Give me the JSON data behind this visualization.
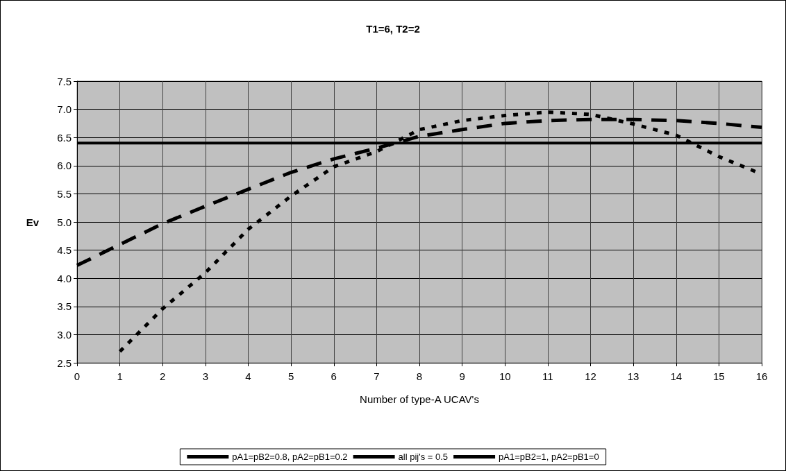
{
  "chart_data": {
    "type": "line",
    "title": "T1=6, T2=2",
    "xlabel": "Number of type-A UCAV's",
    "ylabel": "Ev",
    "x": [
      0,
      1,
      2,
      3,
      4,
      5,
      6,
      7,
      8,
      9,
      10,
      11,
      12,
      13,
      14,
      15,
      16
    ],
    "series": [
      {
        "name": "pA1=pB2=0.8, pA2=pB1=0.2",
        "color": "#000000",
        "line_style": "dashed",
        "values": [
          4.23,
          4.6,
          4.97,
          5.28,
          5.58,
          5.88,
          6.12,
          6.31,
          6.52,
          6.64,
          6.75,
          6.8,
          6.82,
          6.82,
          6.8,
          6.75,
          6.68
        ]
      },
      {
        "name": "all pij's = 0.5",
        "color": "#000000",
        "line_style": "solid",
        "values": [
          6.4,
          6.4,
          6.4,
          6.4,
          6.4,
          6.4,
          6.4,
          6.4,
          6.4,
          6.4,
          6.4,
          6.4,
          6.4,
          6.4,
          6.4,
          6.4,
          6.4
        ]
      },
      {
        "name": "pA1=pB2=1, pA2=pB1=0",
        "color": "#000000",
        "line_style": "dotted",
        "values": [
          null,
          2.7,
          3.46,
          4.1,
          4.87,
          5.46,
          5.98,
          6.25,
          6.64,
          6.8,
          6.89,
          6.95,
          6.91,
          6.74,
          6.54,
          6.16,
          5.85
        ]
      }
    ],
    "xlim": [
      0,
      16
    ],
    "xticks": [
      0,
      1,
      2,
      3,
      4,
      5,
      6,
      7,
      8,
      9,
      10,
      11,
      12,
      13,
      14,
      15,
      16
    ],
    "ylim": [
      2.5,
      7.5
    ],
    "yticks": [
      2.5,
      {
        "value": 3,
        "label": "3.0"
      },
      3.5,
      {
        "value": 4,
        "label": "4.0"
      },
      4.5,
      {
        "value": 5,
        "label": "5.0"
      },
      5.5,
      {
        "value": 6,
        "label": "6.0"
      },
      6.5,
      {
        "value": 7,
        "label": "7.0"
      },
      7.5
    ],
    "grid": true,
    "legend": "bottom",
    "marker": "none"
  }
}
